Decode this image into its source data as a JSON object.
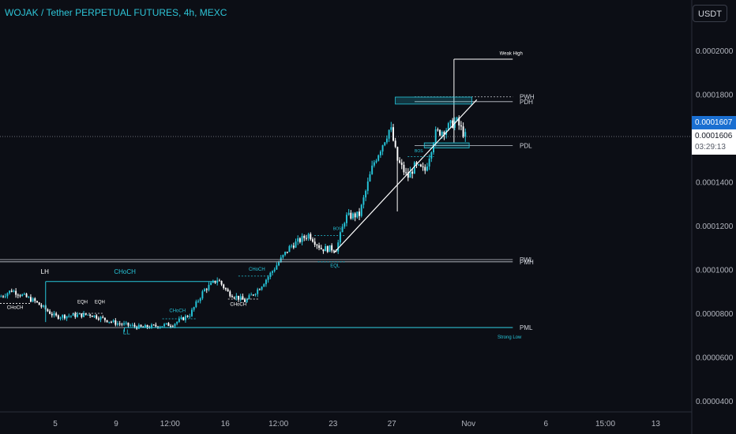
{
  "header": {
    "title": "WOJAK / Tether PERPETUAL FUTURES, 4h, MEXC",
    "currency": "USDT"
  },
  "price_axis": {
    "last_price": "0.0001607",
    "current_price": "0.0001606",
    "countdown": "03:29:13"
  },
  "colors": {
    "background": "#0c0e15",
    "up": "#26c6da",
    "down": "#ffffff",
    "structure": "#26c6da",
    "accent": "#2ec4d6"
  },
  "chart_data": {
    "type": "candlestick",
    "interval": "4h",
    "symbol": "WOJAK / Tether PERPETUAL FUTURES",
    "y_ticks": [
      "0.0002000",
      "0.0001800",
      "0.0001600",
      "0.0001400",
      "0.0001200",
      "0.0001000",
      "0.0000800",
      "0.0000600",
      "0.0000400"
    ],
    "y_tick_values": [
      0.0002,
      0.00018,
      0.00016,
      0.00014,
      0.00012,
      0.0001,
      8e-05,
      6e-05,
      4e-05
    ],
    "ylim": [
      3.5e-05,
      0.000223
    ],
    "x_ticks": [
      "5",
      "9",
      "12:00",
      "16",
      "12:00",
      "23",
      "27",
      "Nov",
      "6",
      "15:00",
      "13"
    ],
    "x_tick_positions": [
      0.08,
      0.168,
      0.246,
      0.326,
      0.403,
      0.482,
      0.567,
      0.678,
      0.79,
      0.876,
      0.949
    ],
    "anchors": [
      [
        0,
        8.75e-05
      ],
      [
        0.017,
        9.05e-05
      ],
      [
        0.05,
        8.55e-05
      ],
      [
        0.08,
        7.85e-05
      ],
      [
        0.13,
        7.95e-05
      ],
      [
        0.168,
        7.55e-05
      ],
      [
        0.205,
        7.35e-05
      ],
      [
        0.25,
        7.5e-05
      ],
      [
        0.275,
        7.95e-05
      ],
      [
        0.295,
        9.05e-05
      ],
      [
        0.315,
        9.55e-05
      ],
      [
        0.33,
        8.95e-05
      ],
      [
        0.355,
        8.55e-05
      ],
      [
        0.375,
        9.15e-05
      ],
      [
        0.39,
        9.75e-05
      ],
      [
        0.42,
        0.0001105
      ],
      [
        0.447,
        0.000116
      ],
      [
        0.465,
        0.0001095
      ],
      [
        0.487,
        0.0001095
      ],
      [
        0.5,
        0.000124
      ],
      [
        0.52,
        0.000125
      ],
      [
        0.54,
        0.000148
      ],
      [
        0.565,
        0.000165
      ],
      [
        0.575,
        0.00015
      ],
      [
        0.59,
        0.000142
      ],
      [
        0.6,
        0.000147
      ],
      [
        0.615,
        0.000145
      ],
      [
        0.63,
        0.000162
      ],
      [
        0.645,
        0.000164
      ],
      [
        0.66,
        0.000168
      ],
      [
        0.675,
        0.00016
      ]
    ],
    "count": 220,
    "lines": [
      {
        "label": "PWH",
        "value": 0.0001788,
        "style": "dotted"
      },
      {
        "label": "PDH",
        "value": 0.0001766,
        "style": "solid"
      },
      {
        "label": "PDL",
        "value": 0.0001566,
        "style": "solid"
      },
      {
        "label": "PWL",
        "value": 0.0001045,
        "style": "solid"
      },
      {
        "label": "PMH",
        "value": 0.0001035,
        "style": "solid"
      },
      {
        "label": "PML",
        "value": 7.35e-05,
        "style": "solid"
      }
    ],
    "annotations": [
      "Weak High",
      "Strong Low",
      "LH",
      "LL",
      "CHoCH",
      "CHoCH",
      "CHoCH",
      "CHoCH",
      "CHoCH",
      "EQH",
      "EQH",
      "EQL",
      "BOS",
      "BOS"
    ],
    "trendline": {
      "from": [
        0.483,
        0.0001075
      ],
      "to": [
        0.69,
        0.0001775
      ]
    },
    "zones": [
      {
        "from": [
          0.572,
          0.0001787
        ],
        "to": [
          0.683,
          0.0001755
        ]
      },
      {
        "from": [
          0.614,
          0.0001578
        ],
        "to": [
          0.679,
          0.0001555
        ]
      }
    ]
  }
}
